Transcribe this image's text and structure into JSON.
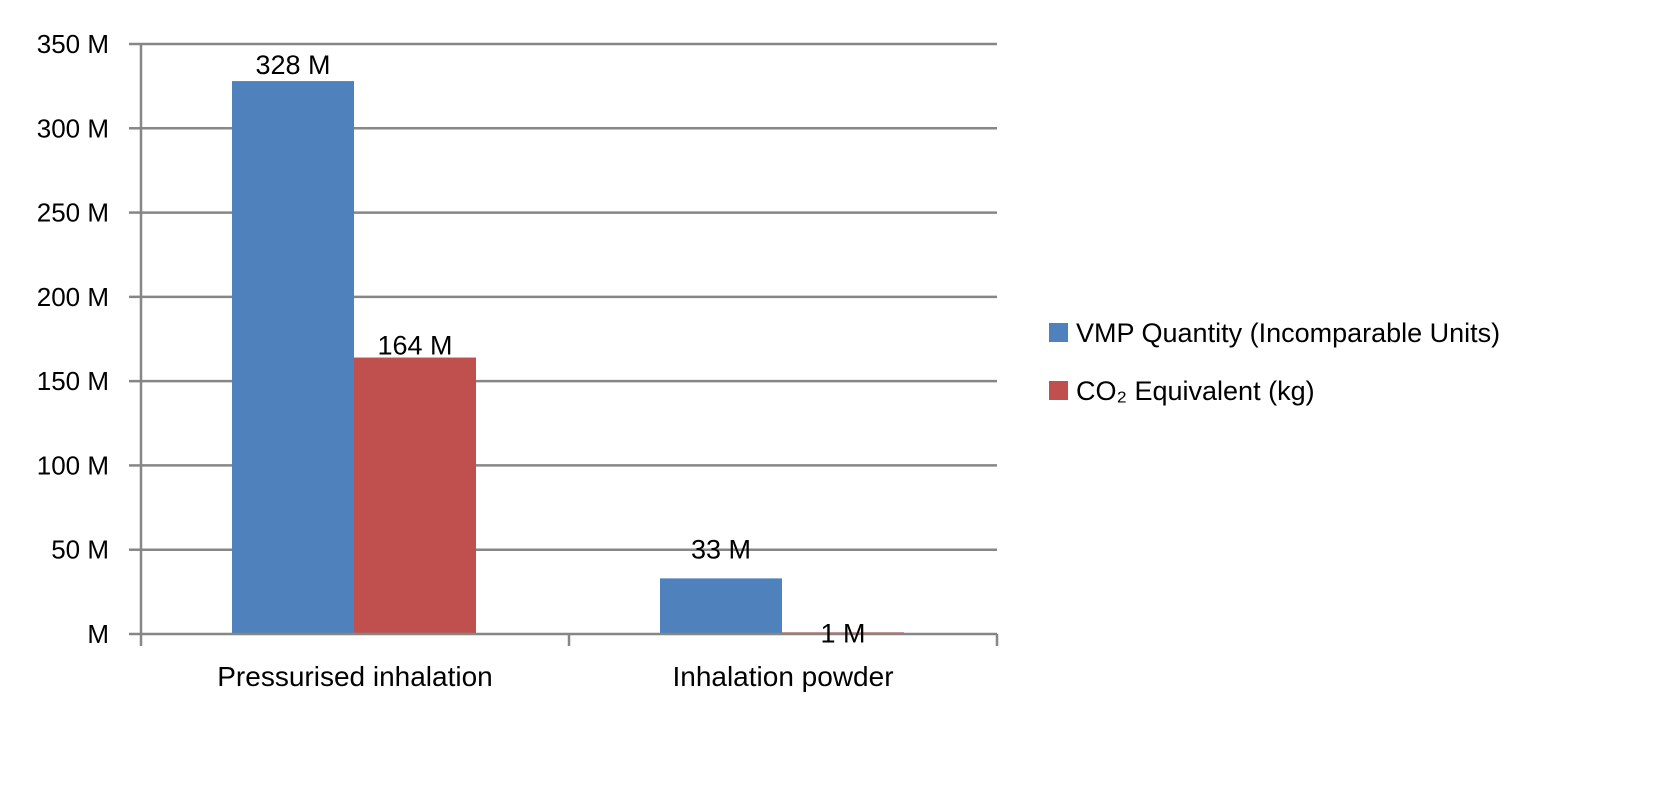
{
  "chart_data": {
    "type": "bar",
    "title": "",
    "xlabel": "",
    "ylabel": "",
    "categories": [
      "Pressurised inhalation",
      "Inhalation powder"
    ],
    "series": [
      {
        "name": "VMP Quantity (Incomparable Units)",
        "color": "#4f81bd",
        "values": [
          328,
          33
        ],
        "labels": [
          "328 M",
          "33 M"
        ]
      },
      {
        "name": "CO₂ Equivalent (kg)",
        "color": "#c0504d",
        "values": [
          164,
          1
        ],
        "labels": [
          "164 M",
          "1 M"
        ]
      }
    ],
    "ylim": [
      0,
      350
    ],
    "yticks": [
      0,
      50,
      100,
      150,
      200,
      250,
      300,
      350
    ],
    "ytick_labels": [
      "M",
      "50 M",
      "100 M",
      "150 M",
      "200 M",
      "250 M",
      "300 M",
      "350 M"
    ],
    "grid": true,
    "legend": "right",
    "gridline_color": "#868686"
  }
}
